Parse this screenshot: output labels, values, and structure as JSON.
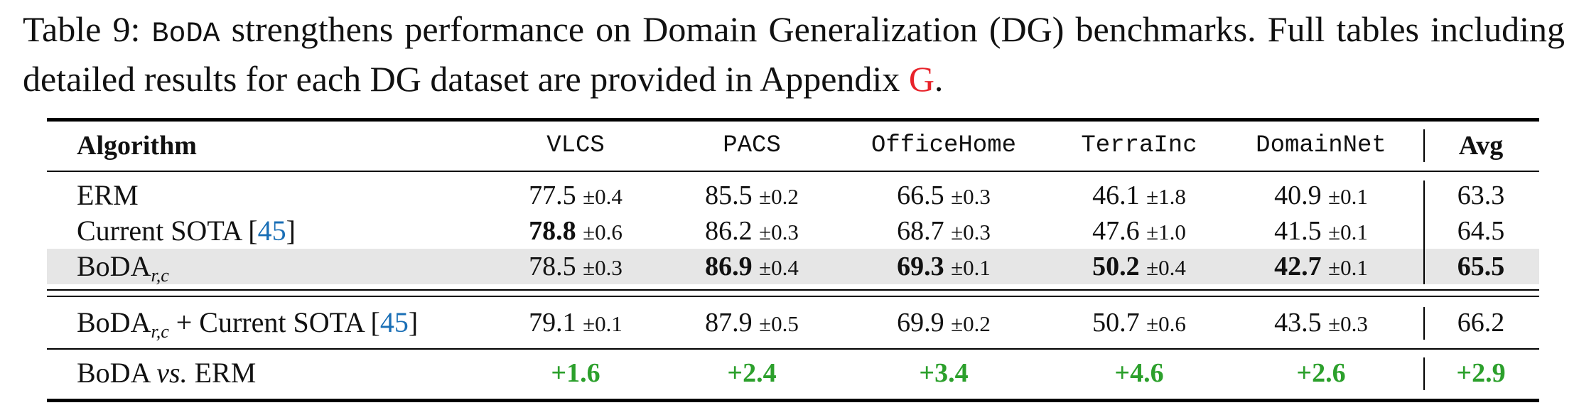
{
  "caption": {
    "prefix": "Table 9: ",
    "method": "BoDA",
    "text1": " strengthens performance on Domain Generalization (DG) benchmarks. Full tables including detailed results for each DG dataset are provided in Appendix ",
    "appendix_ref": "G",
    "text2": "."
  },
  "table": {
    "headers": [
      "Algorithm",
      "VLCS",
      "PACS",
      "OfficeHome",
      "TerraInc",
      "DomainNet",
      "Avg"
    ],
    "rows": {
      "erm": {
        "name": "ERM",
        "cells": [
          {
            "v": "77.5",
            "pm": "±0.4"
          },
          {
            "v": "85.5",
            "pm": "±0.2"
          },
          {
            "v": "66.5",
            "pm": "±0.3"
          },
          {
            "v": "46.1",
            "pm": "±1.8"
          },
          {
            "v": "40.9",
            "pm": "±0.1"
          }
        ],
        "avg": "63.3"
      },
      "sota": {
        "name": "Current SOTA [",
        "ref": "45",
        "name_end": "]",
        "cells": [
          {
            "v": "78.8",
            "pm": "±0.6"
          },
          {
            "v": "86.2",
            "pm": "±0.3"
          },
          {
            "v": "68.7",
            "pm": "±0.3"
          },
          {
            "v": "47.6",
            "pm": "±1.0"
          },
          {
            "v": "41.5",
            "pm": "±0.1"
          }
        ],
        "avg": "64.5"
      },
      "boda": {
        "name": "BoDA",
        "sub": "r,c",
        "cells": [
          {
            "v": "78.5",
            "pm": "±0.3"
          },
          {
            "v": "86.9",
            "pm": "±0.4"
          },
          {
            "v": "69.3",
            "pm": "±0.1"
          },
          {
            "v": "50.2",
            "pm": "±0.4"
          },
          {
            "v": "42.7",
            "pm": "±0.1"
          }
        ],
        "avg": "65.5"
      },
      "combo": {
        "name": "BoDA",
        "sub": "r,c",
        "name_rest": " + Current SOTA [",
        "ref": "45",
        "name_end": "]",
        "cells": [
          {
            "v": "79.1",
            "pm": "±0.1"
          },
          {
            "v": "87.9",
            "pm": "±0.5"
          },
          {
            "v": "69.9",
            "pm": "±0.2"
          },
          {
            "v": "50.7",
            "pm": "±0.6"
          },
          {
            "v": "43.5",
            "pm": "±0.3"
          }
        ],
        "avg": "66.2"
      },
      "gain": {
        "name_a": "BoDA ",
        "name_vs": "vs.",
        "name_b": " ERM",
        "cells": [
          "+1.6",
          "+2.4",
          "+3.4",
          "+4.6",
          "+2.6"
        ],
        "avg": "+2.9"
      }
    },
    "colors": {
      "gain": "#2ca02c",
      "highlight_row": "#e6e6e6",
      "ref_red": "#e8232a",
      "ref_blue": "#1a6fb6"
    }
  }
}
